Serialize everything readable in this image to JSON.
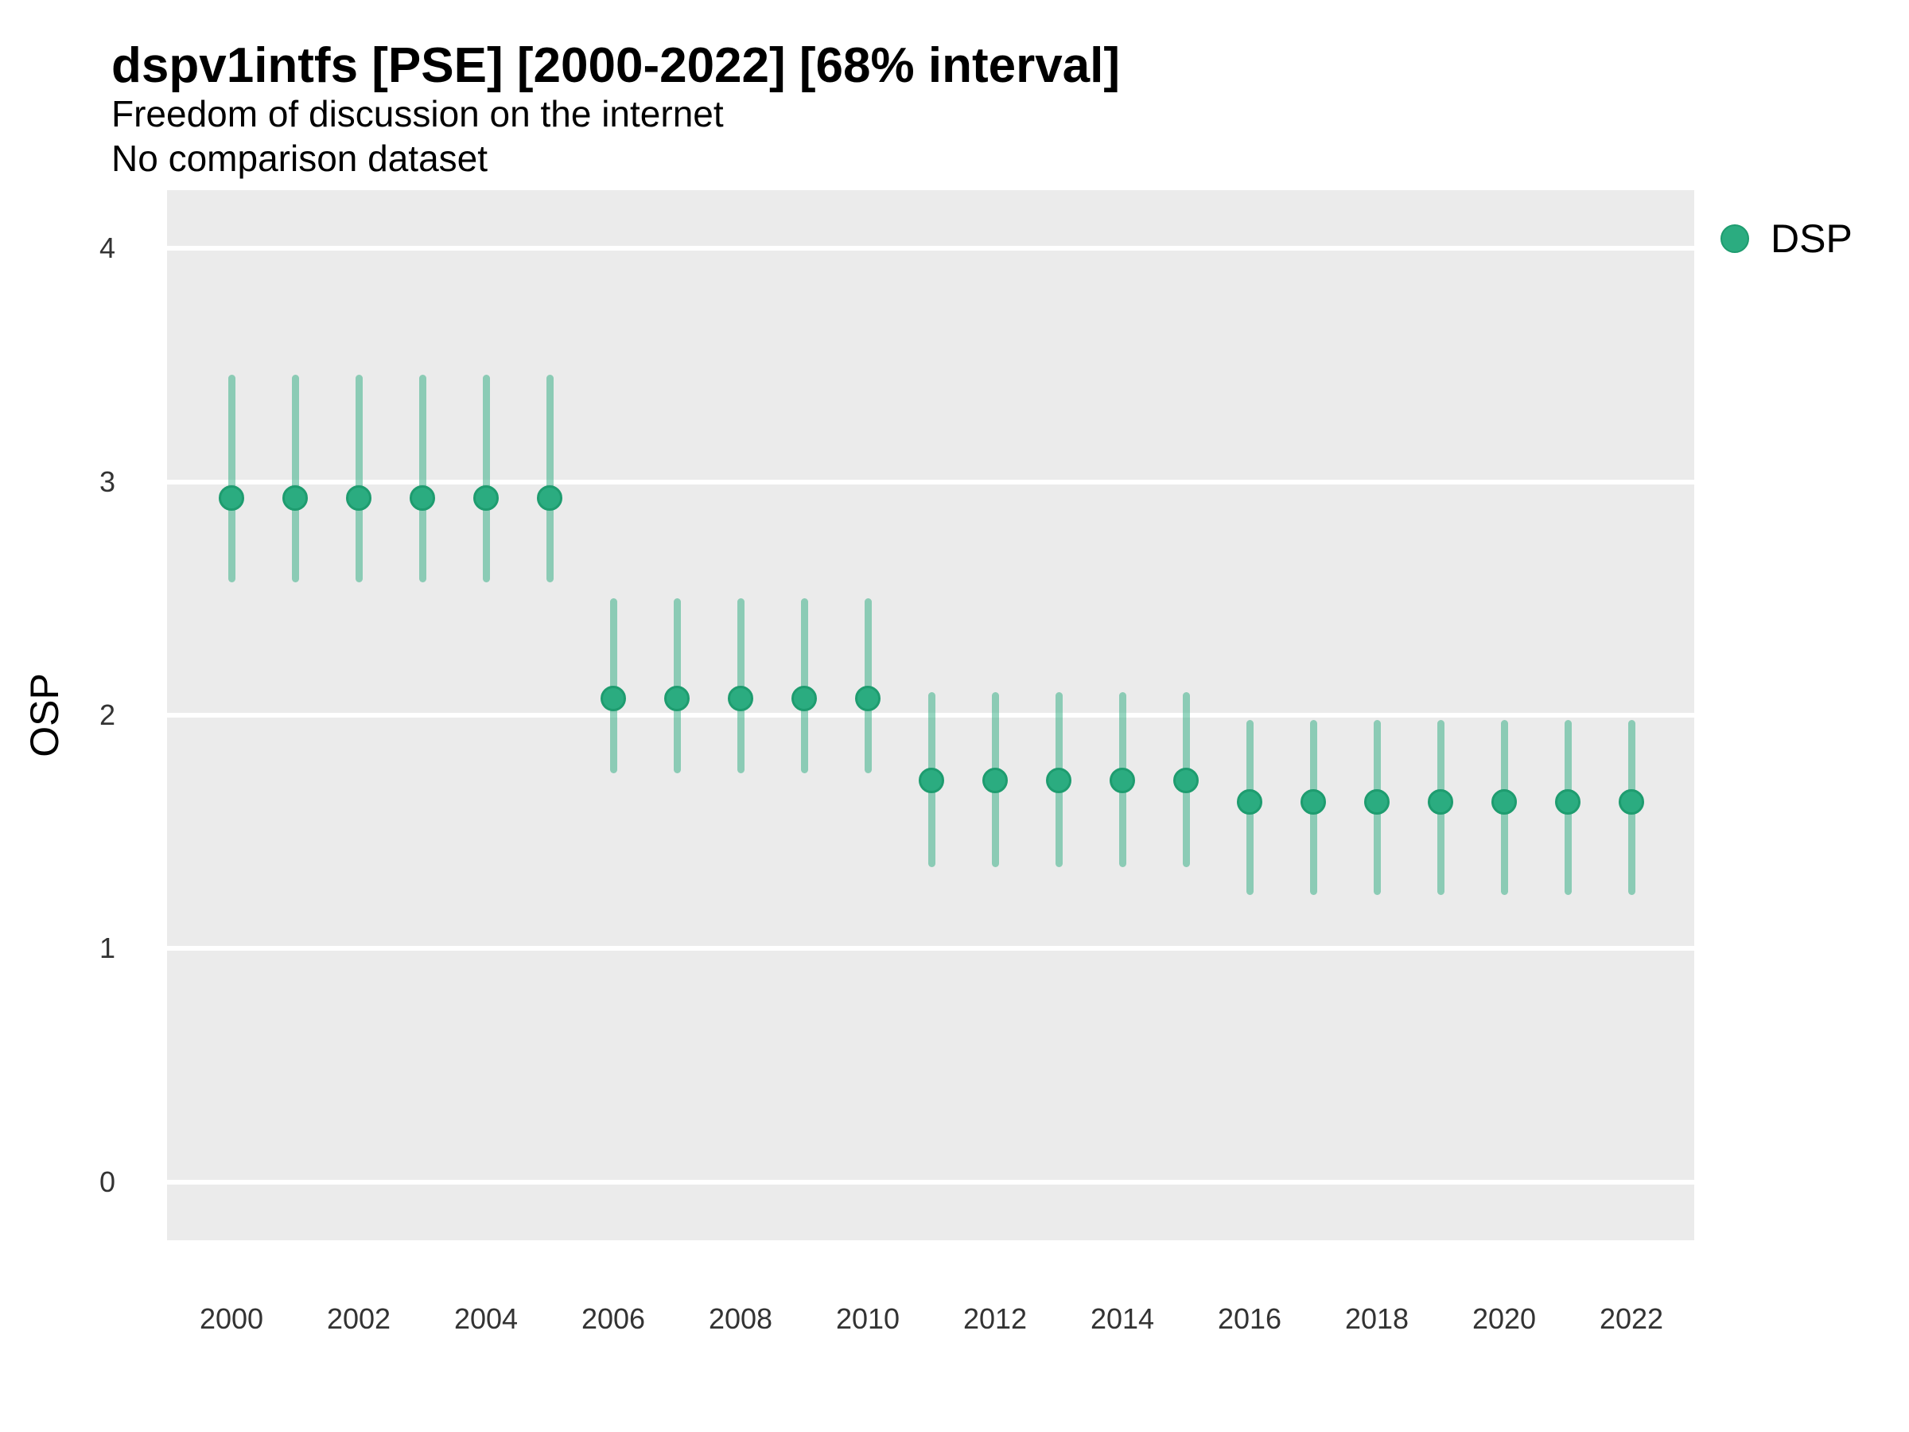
{
  "title": "dspv1intfs [PSE] [2000-2022] [68% interval]",
  "subtitle1": "Freedom of discussion on the internet",
  "subtitle2": "No comparison dataset",
  "y_axis_label": "OSP",
  "legend": {
    "label": "DSP"
  },
  "colors": {
    "point_fill": "#2BAC80",
    "point_stroke": "#1E9C6F",
    "interval": "rgba(43,172,128,0.5)",
    "panel_bg": "#EBEBEB",
    "gridline": "#FFFFFF",
    "axis_text": "#333333",
    "title_text": "#000000"
  },
  "chart_data": {
    "type": "scatter",
    "title": "dspv1intfs [PSE] [2000-2022] [68% interval]",
    "subtitle": [
      "Freedom of discussion on the internet",
      "No comparison dataset"
    ],
    "ylabel": "OSP",
    "interval_level": "68%",
    "grid": true,
    "legend_position": "right",
    "ylim": [
      -0.25,
      4.25
    ],
    "y_ticks": [
      0,
      1,
      2,
      3,
      4
    ],
    "x_tick_labels": [
      "2000",
      "2002",
      "2004",
      "2006",
      "2008",
      "2010",
      "2012",
      "2014",
      "2016",
      "2018",
      "2020",
      "2022"
    ],
    "series": [
      {
        "name": "DSP",
        "years": [
          2000,
          2001,
          2002,
          2003,
          2004,
          2005,
          2006,
          2007,
          2008,
          2009,
          2010,
          2011,
          2012,
          2013,
          2014,
          2015,
          2016,
          2017,
          2018,
          2019,
          2020,
          2021,
          2022
        ],
        "est": [
          2.93,
          2.93,
          2.93,
          2.93,
          2.93,
          2.93,
          2.07,
          2.07,
          2.07,
          2.07,
          2.07,
          1.72,
          1.72,
          1.72,
          1.72,
          1.72,
          1.63,
          1.63,
          1.63,
          1.63,
          1.63,
          1.63,
          1.63
        ],
        "lower": [
          2.57,
          2.57,
          2.57,
          2.57,
          2.57,
          2.57,
          1.75,
          1.75,
          1.75,
          1.75,
          1.75,
          1.35,
          1.35,
          1.35,
          1.35,
          1.35,
          1.23,
          1.23,
          1.23,
          1.23,
          1.23,
          1.23,
          1.23
        ],
        "upper": [
          3.46,
          3.46,
          3.46,
          3.46,
          3.46,
          3.46,
          2.5,
          2.5,
          2.5,
          2.5,
          2.5,
          2.1,
          2.1,
          2.1,
          2.1,
          2.1,
          1.98,
          1.98,
          1.98,
          1.98,
          1.98,
          1.98,
          1.98
        ]
      }
    ]
  }
}
